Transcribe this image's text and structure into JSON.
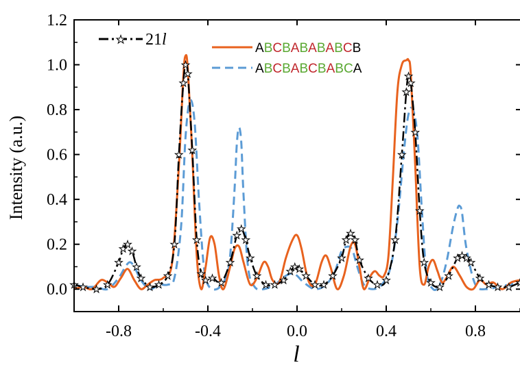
{
  "chart_data": {
    "type": "line",
    "title": "",
    "xlabel": "l",
    "ylabel": "Intensity (a.u.)",
    "xlim": [
      -1.0,
      1.0
    ],
    "ylim": [
      -0.1,
      1.2
    ],
    "x_ticks": [
      -0.8,
      -0.4,
      0.0,
      0.4,
      0.8
    ],
    "x_tick_labels": [
      "-0.8",
      "-0.4",
      "0.0",
      "0.4",
      "0.8"
    ],
    "y_ticks": [
      0.0,
      0.2,
      0.4,
      0.6,
      0.8,
      1.0,
      1.2
    ],
    "y_tick_labels": [
      "0.0",
      "0.2",
      "0.4",
      "0.6",
      "0.8",
      "1.0",
      "1.2"
    ],
    "grid": false,
    "legend_position": "top",
    "series": [
      {
        "name": "21l",
        "name_parts": [
          "21",
          "l"
        ],
        "color": "#000000",
        "style": "dash-dot-star",
        "x": [
          -1.0,
          -0.96,
          -0.9,
          -0.85,
          -0.8,
          -0.78,
          -0.76,
          -0.74,
          -0.72,
          -0.7,
          -0.66,
          -0.62,
          -0.58,
          -0.55,
          -0.53,
          -0.51,
          -0.5,
          -0.49,
          -0.47,
          -0.45,
          -0.43,
          -0.41,
          -0.38,
          -0.34,
          -0.3,
          -0.27,
          -0.25,
          -0.23,
          -0.21,
          -0.18,
          -0.14,
          -0.1,
          -0.06,
          -0.03,
          -0.01,
          0.01,
          0.04,
          0.08,
          0.12,
          0.16,
          0.2,
          0.22,
          0.24,
          0.26,
          0.28,
          0.32,
          0.36,
          0.4,
          0.44,
          0.47,
          0.49,
          0.5,
          0.51,
          0.53,
          0.55,
          0.57,
          0.6,
          0.64,
          0.68,
          0.72,
          0.74,
          0.76,
          0.78,
          0.82,
          0.86,
          0.9,
          0.95,
          1.0
        ],
        "y": [
          0.02,
          0.01,
          0.0,
          0.02,
          0.12,
          0.18,
          0.2,
          0.17,
          0.1,
          0.05,
          0.01,
          0.02,
          0.06,
          0.2,
          0.6,
          0.92,
          1.0,
          0.96,
          0.62,
          0.22,
          0.07,
          0.04,
          0.05,
          0.03,
          0.12,
          0.24,
          0.27,
          0.22,
          0.14,
          0.06,
          0.02,
          0.02,
          0.04,
          0.08,
          0.1,
          0.09,
          0.06,
          0.02,
          0.02,
          0.06,
          0.14,
          0.22,
          0.25,
          0.22,
          0.13,
          0.05,
          0.02,
          0.04,
          0.22,
          0.6,
          0.88,
          0.95,
          0.92,
          0.7,
          0.35,
          0.12,
          0.03,
          0.01,
          0.06,
          0.14,
          0.15,
          0.14,
          0.12,
          0.05,
          0.02,
          0.01,
          0.01,
          0.03
        ]
      },
      {
        "name": "ABCBABABABCB",
        "color": "#e8621e",
        "style": "solid",
        "x": [
          -1.0,
          -0.96,
          -0.92,
          -0.88,
          -0.85,
          -0.82,
          -0.79,
          -0.76,
          -0.73,
          -0.7,
          -0.67,
          -0.64,
          -0.6,
          -0.56,
          -0.53,
          -0.51,
          -0.5,
          -0.49,
          -0.47,
          -0.45,
          -0.43,
          -0.41,
          -0.39,
          -0.37,
          -0.35,
          -0.33,
          -0.3,
          -0.28,
          -0.26,
          -0.24,
          -0.21,
          -0.18,
          -0.15,
          -0.13,
          -0.11,
          -0.08,
          -0.05,
          -0.02,
          0.0,
          0.02,
          0.05,
          0.08,
          0.11,
          0.13,
          0.15,
          0.18,
          0.21,
          0.24,
          0.26,
          0.28,
          0.3,
          0.33,
          0.35,
          0.37,
          0.39,
          0.41,
          0.43,
          0.45,
          0.47,
          0.49,
          0.5,
          0.51,
          0.53,
          0.55,
          0.57,
          0.59,
          0.61,
          0.63,
          0.65,
          0.67,
          0.7,
          0.73,
          0.76,
          0.79,
          0.82,
          0.85,
          0.88,
          0.92,
          0.96,
          1.0
        ],
        "y": [
          0.0,
          0.01,
          0.0,
          0.04,
          0.03,
          0.01,
          0.05,
          0.09,
          0.04,
          0.0,
          0.02,
          0.04,
          0.05,
          0.12,
          0.55,
          0.95,
          1.04,
          0.98,
          0.6,
          0.15,
          0.0,
          0.1,
          0.23,
          0.2,
          0.06,
          0.0,
          0.1,
          0.18,
          0.19,
          0.12,
          0.02,
          0.05,
          0.12,
          0.1,
          0.04,
          0.03,
          0.14,
          0.22,
          0.24,
          0.18,
          0.04,
          0.02,
          0.12,
          0.15,
          0.1,
          0.0,
          0.06,
          0.19,
          0.2,
          0.1,
          0.0,
          0.06,
          0.08,
          0.06,
          0.06,
          0.15,
          0.5,
          0.88,
          1.0,
          1.02,
          1.02,
          0.96,
          0.55,
          0.1,
          0.02,
          0.1,
          0.13,
          0.08,
          0.03,
          0.05,
          0.1,
          0.06,
          0.01,
          0.0,
          0.04,
          0.02,
          0.03,
          0.0,
          0.03,
          0.04
        ]
      },
      {
        "name": "ABCBABCBABCA",
        "color": "#5b9bd5",
        "style": "dashed",
        "x": [
          -1.0,
          -0.95,
          -0.9,
          -0.85,
          -0.8,
          -0.77,
          -0.75,
          -0.73,
          -0.7,
          -0.66,
          -0.62,
          -0.58,
          -0.55,
          -0.52,
          -0.5,
          -0.48,
          -0.46,
          -0.44,
          -0.42,
          -0.4,
          -0.36,
          -0.32,
          -0.3,
          -0.28,
          -0.27,
          -0.26,
          -0.25,
          -0.24,
          -0.22,
          -0.19,
          -0.15,
          -0.1,
          -0.05,
          -0.02,
          0.0,
          0.03,
          0.08,
          0.13,
          0.17,
          0.2,
          0.23,
          0.25,
          0.27,
          0.3,
          0.34,
          0.38,
          0.42,
          0.45,
          0.48,
          0.5,
          0.52,
          0.54,
          0.56,
          0.58,
          0.61,
          0.64,
          0.67,
          0.7,
          0.72,
          0.73,
          0.74,
          0.76,
          0.8,
          0.85,
          0.9,
          0.95,
          1.0
        ],
        "y": [
          0.02,
          0.01,
          0.01,
          0.0,
          0.05,
          0.1,
          0.12,
          0.1,
          0.04,
          0.0,
          0.02,
          0.02,
          0.05,
          0.28,
          0.68,
          0.84,
          0.75,
          0.4,
          0.12,
          0.02,
          0.0,
          0.05,
          0.15,
          0.45,
          0.65,
          0.72,
          0.65,
          0.42,
          0.1,
          0.01,
          0.0,
          0.02,
          0.06,
          0.07,
          0.06,
          0.03,
          0.0,
          0.02,
          0.08,
          0.17,
          0.19,
          0.17,
          0.1,
          0.02,
          0.0,
          0.02,
          0.1,
          0.3,
          0.62,
          0.78,
          0.8,
          0.68,
          0.35,
          0.08,
          0.0,
          0.02,
          0.12,
          0.28,
          0.36,
          0.37,
          0.34,
          0.18,
          0.02,
          0.0,
          0.01,
          0.02,
          0.03
        ]
      }
    ],
    "legend": [
      {
        "series": "21l",
        "label": "21",
        "label_italic": "l"
      },
      {
        "series": "ABCBABABABCB",
        "letters": [
          "A",
          "B",
          "C",
          "B",
          "A",
          "B",
          "A",
          "B",
          "A",
          "B",
          "C",
          "B"
        ],
        "letter_colors": [
          "#000000",
          "#5aa832",
          "#c0272d",
          "#5aa832",
          "#c0272d",
          "#5aa832",
          "#c0272d",
          "#5aa832",
          "#c0272d",
          "#5aa832",
          "#c0272d",
          "#000000"
        ]
      },
      {
        "series": "ABCBABCBABCA",
        "letters": [
          "A",
          "B",
          "C",
          "B",
          "A",
          "B",
          "C",
          "B",
          "A",
          "B",
          "C",
          "A"
        ],
        "letter_colors": [
          "#000000",
          "#5aa832",
          "#c0272d",
          "#5aa832",
          "#c0272d",
          "#5aa832",
          "#c0272d",
          "#5aa832",
          "#c0272d",
          "#5aa832",
          "#5aa832",
          "#000000"
        ]
      }
    ]
  }
}
